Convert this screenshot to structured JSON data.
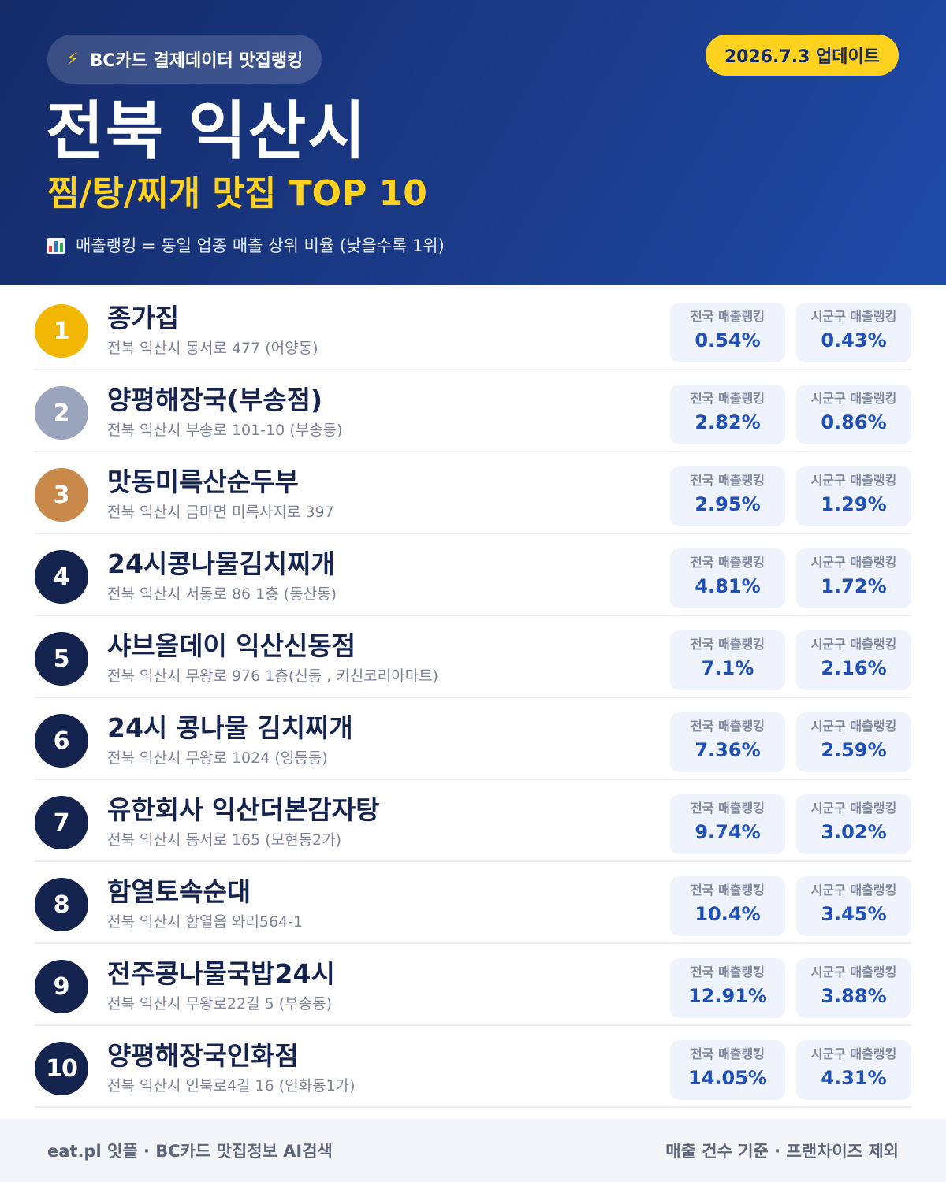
{
  "header": {
    "source_label": "BC카드 결제데이터 맛집랭킹",
    "source_icon": "lightning-icon",
    "update_label": "2026.7.3 업데이트",
    "title": "전북 익산시",
    "subtitle": "찜/탕/찌개 맛집 TOP 10",
    "note_icon": "bar-chart-icon",
    "note": "매출랭킹 = 동일 업종 매출 상위 비율 (낮을수록 1위)"
  },
  "colors": {
    "brand_navy": "#15234f",
    "accent_yellow": "#ffd21f",
    "gold": "#f2b705",
    "silver": "#9aa5bd",
    "bronze": "#c8894a",
    "value_blue": "#1f4fb8"
  },
  "stat_labels": {
    "national": "전국 매출랭킹",
    "local": "시군구 매출랭킹"
  },
  "restaurants": [
    {
      "rank": "1",
      "name": "종가집",
      "address": "전북 익산시 동서로 477 (어양동)",
      "national": "0.54%",
      "local": "0.43%"
    },
    {
      "rank": "2",
      "name": "양평해장국(부송점)",
      "address": "전북 익산시 부송로 101-10 (부송동)",
      "national": "2.82%",
      "local": "0.86%"
    },
    {
      "rank": "3",
      "name": "맛동미륵산순두부",
      "address": "전북 익산시 금마면 미륵사지로 397",
      "national": "2.95%",
      "local": "1.29%"
    },
    {
      "rank": "4",
      "name": "24시콩나물김치찌개",
      "address": "전북 익산시 서동로 86 1층 (동산동)",
      "national": "4.81%",
      "local": "1.72%"
    },
    {
      "rank": "5",
      "name": "샤브올데이 익산신동점",
      "address": "전북 익산시 무왕로 976 1층(신동 , 키친코리아마트)",
      "national": "7.1%",
      "local": "2.16%"
    },
    {
      "rank": "6",
      "name": "24시 콩나물 김치찌개",
      "address": "전북 익산시 무왕로 1024 (영등동)",
      "national": "7.36%",
      "local": "2.59%"
    },
    {
      "rank": "7",
      "name": "유한회사 익산더본감자탕",
      "address": "전북 익산시 동서로 165 (모현동2가)",
      "national": "9.74%",
      "local": "3.02%"
    },
    {
      "rank": "8",
      "name": "함열토속순대",
      "address": "전북 익산시 함열읍 와리564-1",
      "national": "10.4%",
      "local": "3.45%"
    },
    {
      "rank": "9",
      "name": "전주콩나물국밥24시",
      "address": "전북 익산시 무왕로22길 5 (부송동)",
      "national": "12.91%",
      "local": "3.88%"
    },
    {
      "rank": "10",
      "name": "양평해장국인화점",
      "address": "전북 익산시 인북로4길 16 (인화동1가)",
      "national": "14.05%",
      "local": "4.31%"
    }
  ],
  "footer": {
    "left": "eat.pl 잇플 · BC카드 맛집정보 AI검색",
    "right": "매출 건수 기준 · 프랜차이즈 제외"
  }
}
